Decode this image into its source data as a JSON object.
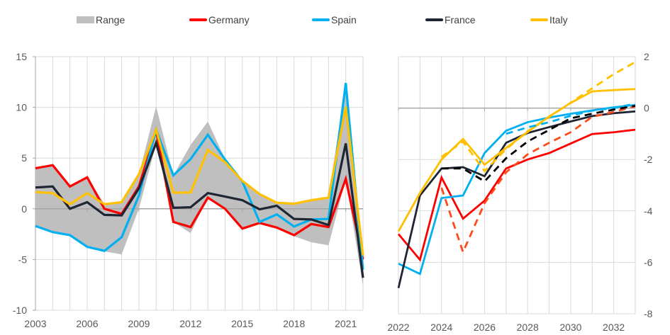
{
  "legend": [
    {
      "label": "Range",
      "kind": "area",
      "color": "#BFBFBF"
    },
    {
      "label": "Germany",
      "kind": "line",
      "color": "#FF0000"
    },
    {
      "label": "Spain",
      "kind": "line",
      "color": "#00B0F0"
    },
    {
      "label": "France",
      "kind": "line",
      "color": "#1F2633"
    },
    {
      "label": "Italy",
      "kind": "line",
      "color": "#FFC000"
    }
  ],
  "chart_data": [
    {
      "type": "line",
      "title": "",
      "xlabel": "",
      "ylabel": "",
      "x": [
        2003,
        2004,
        2005,
        2006,
        2007,
        2008,
        2009,
        2010,
        2011,
        2012,
        2013,
        2014,
        2015,
        2016,
        2017,
        2018,
        2019,
        2020,
        2021,
        2022
      ],
      "xticks": [
        "2003",
        "2006",
        "2009",
        "2012",
        "2015",
        "2018",
        "2021"
      ],
      "xtick_values": [
        2003,
        2006,
        2009,
        2012,
        2015,
        2018,
        2021
      ],
      "yticks": [
        "15",
        "10",
        "5",
        "0",
        "-5",
        "-10"
      ],
      "ytick_values": [
        15,
        10,
        5,
        0,
        -5,
        -10
      ],
      "ylim": [
        -10,
        15
      ],
      "xlim": [
        2003,
        2022
      ],
      "y_axis_side": "left",
      "grid": true,
      "range": {
        "name": "Range",
        "color": "#BFBFBF",
        "upper": [
          4.0,
          4.3,
          2.3,
          3.1,
          0.5,
          0.7,
          3.4,
          10.1,
          3.3,
          6.3,
          8.6,
          4.9,
          2.8,
          1.5,
          0.6,
          0.5,
          0.9,
          1.2,
          12.4,
          -4.6
        ],
        "lower": [
          -1.7,
          -2.3,
          -2.6,
          -3.8,
          -4.2,
          -4.5,
          0.0,
          6.4,
          -1.3,
          -2.4,
          1.1,
          -0.1,
          -2.0,
          -1.4,
          -1.9,
          -2.7,
          -3.3,
          -3.6,
          2.9,
          -7.6
        ]
      },
      "series": [
        {
          "name": "Germany",
          "color": "#FF0000",
          "values": [
            4.0,
            4.3,
            2.2,
            3.1,
            0.0,
            -0.5,
            2.2,
            7.7,
            -1.3,
            -1.8,
            1.1,
            0.0,
            -1.95,
            -1.4,
            -1.85,
            -2.6,
            -1.5,
            -1.8,
            2.95,
            -5.0
          ]
        },
        {
          "name": "Spain",
          "color": "#00B0F0",
          "values": [
            -1.7,
            -2.3,
            -2.6,
            -3.75,
            -4.15,
            -2.8,
            1.3,
            7.8,
            3.3,
            4.9,
            7.3,
            4.85,
            2.7,
            -1.3,
            -0.55,
            -1.75,
            -1.05,
            -1.0,
            12.4,
            -6.0
          ]
        },
        {
          "name": "France",
          "color": "#1F2633",
          "values": [
            2.1,
            2.2,
            0.0,
            0.65,
            -0.6,
            -0.65,
            2.0,
            6.5,
            0.1,
            0.15,
            1.55,
            1.2,
            0.85,
            -0.05,
            0.3,
            -1.0,
            -1.05,
            -1.6,
            6.45,
            -6.8
          ]
        },
        {
          "name": "Italy",
          "color": "#FFC000",
          "values": [
            1.65,
            1.55,
            0.45,
            1.55,
            0.45,
            0.65,
            3.4,
            7.8,
            1.6,
            1.6,
            5.8,
            4.6,
            2.75,
            1.45,
            0.6,
            0.5,
            0.85,
            1.1,
            10.05,
            -4.6
          ]
        }
      ]
    },
    {
      "type": "line",
      "title": "",
      "xlabel": "",
      "ylabel": "",
      "x": [
        2022,
        2023,
        2024,
        2025,
        2026,
        2027,
        2028,
        2029,
        2030,
        2031,
        2032,
        2033
      ],
      "xticks": [
        "2022",
        "2024",
        "2026",
        "2028",
        "2030",
        "2032"
      ],
      "xtick_values": [
        2022,
        2024,
        2026,
        2028,
        2030,
        2032
      ],
      "yticks": [
        "2",
        "0",
        "-2",
        "-4",
        "-6",
        "-8"
      ],
      "ytick_values": [
        2,
        0,
        -2,
        -4,
        -6,
        -8
      ],
      "ylim": [
        -8,
        2
      ],
      "xlim": [
        2022,
        2033
      ],
      "y_axis_side": "right",
      "grid": true,
      "series": [
        {
          "name": "Germany",
          "style": "solid",
          "color": "#FF0000",
          "values": [
            -4.9,
            -5.9,
            -2.7,
            -4.3,
            -3.6,
            -2.35,
            -2.0,
            -1.75,
            -1.38,
            -1.01,
            -0.94,
            -0.84
          ]
        },
        {
          "name": "Spain",
          "style": "solid",
          "color": "#00B0F0",
          "values": [
            -6.05,
            -6.45,
            -3.5,
            -3.4,
            -1.75,
            -0.88,
            -0.55,
            -0.37,
            -0.22,
            -0.09,
            0.03,
            0.12
          ]
        },
        {
          "name": "France",
          "style": "solid",
          "color": "#1F2633",
          "values": [
            -7.0,
            -3.4,
            -2.35,
            -2.3,
            -2.65,
            -1.35,
            -0.97,
            -0.74,
            -0.52,
            -0.31,
            -0.2,
            -0.13
          ]
        },
        {
          "name": "Italy",
          "style": "solid",
          "color": "#FFC000",
          "values": [
            -4.8,
            -3.3,
            -2.0,
            -1.2,
            -2.2,
            -1.55,
            -0.93,
            -0.33,
            0.2,
            0.65,
            0.7,
            0.74
          ]
        },
        {
          "name": "Germany (dashed)",
          "style": "dashed",
          "color": "#FF4A1C",
          "values": [
            null,
            null,
            -3.1,
            -5.6,
            -3.7,
            -2.5,
            -1.8,
            -1.35,
            -0.94,
            -0.34,
            -0.15,
            0.07
          ]
        },
        {
          "name": "Spain (dashed)",
          "style": "dashed",
          "color": "#00B0F0",
          "values": [
            null,
            null,
            null,
            null,
            null,
            -1.0,
            -0.75,
            -0.55,
            -0.3,
            -0.1,
            0.0,
            0.17
          ]
        },
        {
          "name": "France (dashed)",
          "style": "dashed",
          "color": "#000000",
          "values": [
            null,
            null,
            -2.35,
            -2.35,
            -2.85,
            -1.95,
            -1.3,
            -0.85,
            -0.4,
            -0.22,
            -0.06,
            0.09
          ]
        },
        {
          "name": "Italy (dashed)",
          "style": "dashed",
          "color": "#FFC000",
          "values": [
            null,
            null,
            -1.9,
            -1.3,
            -2.45,
            -1.6,
            -0.9,
            -0.35,
            0.21,
            0.77,
            1.32,
            1.79
          ]
        }
      ]
    }
  ]
}
